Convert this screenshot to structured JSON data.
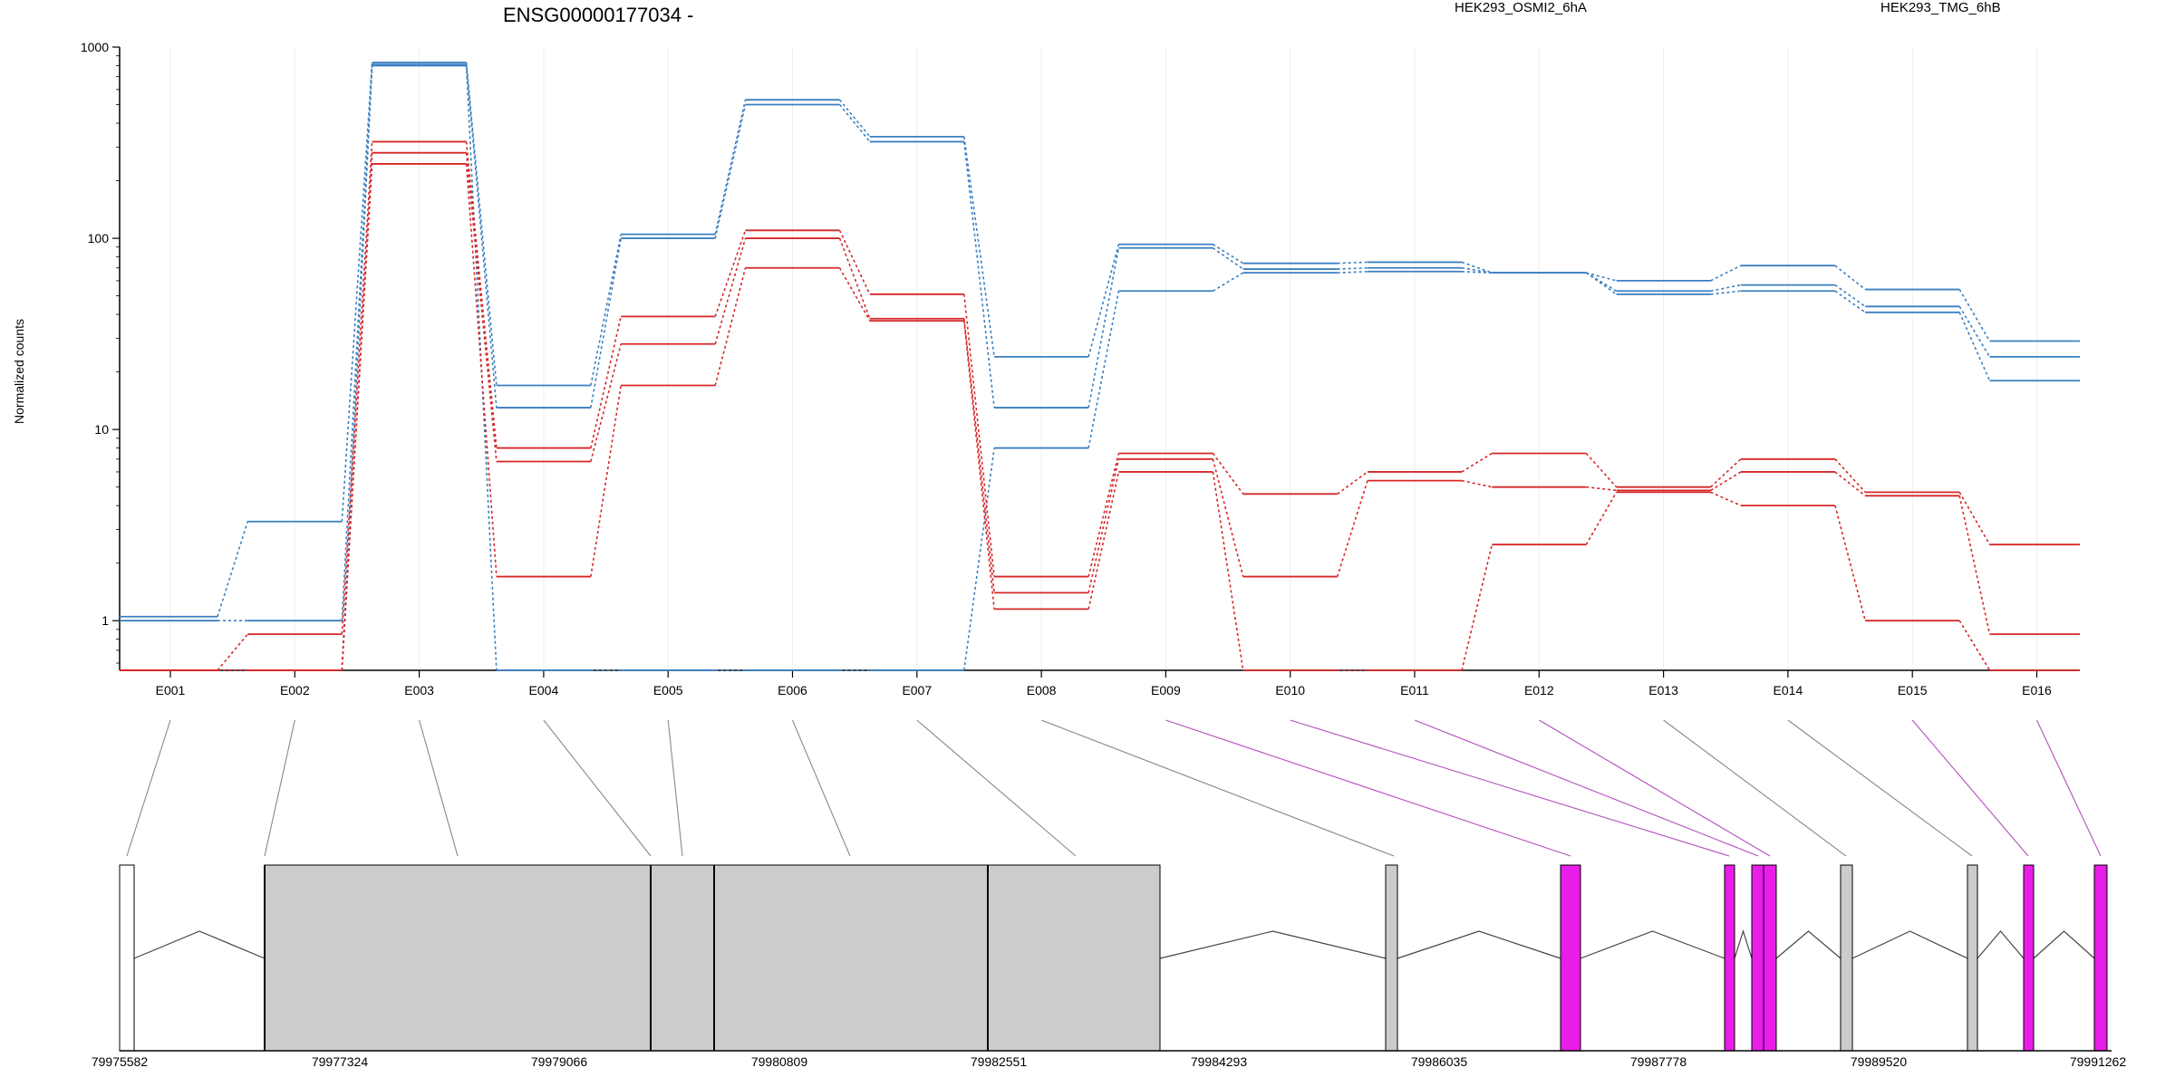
{
  "chart_data": {
    "type": "line",
    "title": "ENSG00000177034 -",
    "ylabel": "Normalized counts",
    "xlabel": "",
    "y_scale": "log",
    "ylim": [
      0.55,
      1000
    ],
    "y_ticks": [
      1,
      10,
      100,
      1000
    ],
    "y_tick_labels": [
      "1",
      "10",
      "100",
      "1000"
    ],
    "grid": "vertical",
    "categories": [
      "E001",
      "E002",
      "E003",
      "E004",
      "E005",
      "E006",
      "E007",
      "E008",
      "E009",
      "E010",
      "E011",
      "E012",
      "E013",
      "E014",
      "E015",
      "E016"
    ],
    "legend": [
      {
        "name": "HEK293_OSMI2_6hA",
        "color": "#d62728"
      },
      {
        "name": "HEK293_TMG_6hB",
        "color": "#3a7fc0"
      }
    ],
    "series": [
      {
        "group": "HEK293_TMG_6hB",
        "color": "#3a7fc0",
        "values": [
          1.05,
          3.3,
          830,
          17,
          105,
          530,
          340,
          24,
          93,
          74,
          75,
          66,
          60,
          72,
          54,
          29
        ]
      },
      {
        "group": "HEK293_TMG_6hB",
        "color": "#3a7fc0",
        "values": [
          1.0,
          1.0,
          810,
          13,
          100,
          500,
          320,
          13,
          89,
          69,
          70,
          66,
          53,
          57,
          44,
          24
        ]
      },
      {
        "group": "HEK293_TMG_6hB",
        "color": "#3a7fc0",
        "values": [
          0.55,
          0.55,
          800,
          0.55,
          0.55,
          0.55,
          0.55,
          8,
          53,
          66,
          67,
          66,
          51,
          53,
          41,
          18
        ]
      },
      {
        "group": "HEK293_OSMI2_6hA",
        "color": "#d62728",
        "values": [
          0.55,
          0.85,
          320,
          8,
          39,
          110,
          51,
          1.7,
          7.5,
          4.6,
          6,
          7.5,
          5,
          7,
          4.7,
          2.5
        ]
      },
      {
        "group": "HEK293_OSMI2_6hA",
        "color": "#d62728",
        "values": [
          0.55,
          0.55,
          280,
          6.8,
          28,
          100,
          38,
          1.4,
          7,
          1.7,
          5.4,
          5,
          4.8,
          6,
          4.5,
          0.85
        ]
      },
      {
        "group": "HEK293_OSMI2_6hA",
        "color": "#d62728",
        "values": [
          0.55,
          0.55,
          245,
          1.7,
          17,
          70,
          37,
          1.15,
          6,
          0.55,
          0.55,
          2.5,
          4.7,
          4,
          1,
          0.55
        ]
      }
    ],
    "gene_model": {
      "coordinate_labels": [
        "79975582",
        "79977324",
        "79979066",
        "79980809",
        "79982551",
        "79984293",
        "79986035",
        "79987778",
        "79989520",
        "79991262"
      ],
      "legend_colors": {
        "not_significant": "#cccccc",
        "significant": "#e81de8"
      },
      "exon_significance": [
        "none",
        "none",
        "none",
        "none",
        "none",
        "none",
        "none",
        "none",
        "significant",
        "significant",
        "significant",
        "significant",
        "none",
        "none",
        "significant",
        "significant"
      ]
    }
  }
}
